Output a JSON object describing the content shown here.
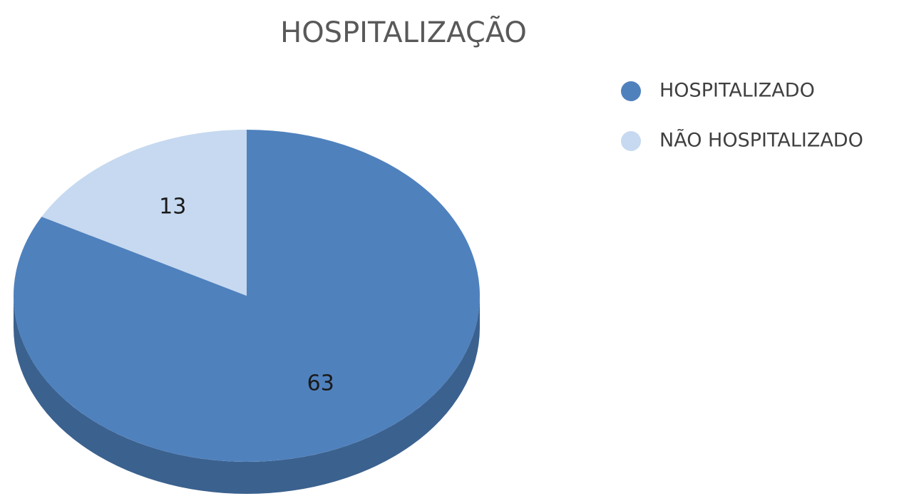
{
  "chart_data": {
    "type": "pie",
    "title": "HOSPITALIZAÇÃO",
    "categories": [
      "HOSPITALIZADO",
      "NÃO HOSPITALIZADO"
    ],
    "values": [
      63,
      13
    ],
    "colors": [
      "#4f81bd",
      "#c6d9f0"
    ],
    "legend": "right"
  }
}
